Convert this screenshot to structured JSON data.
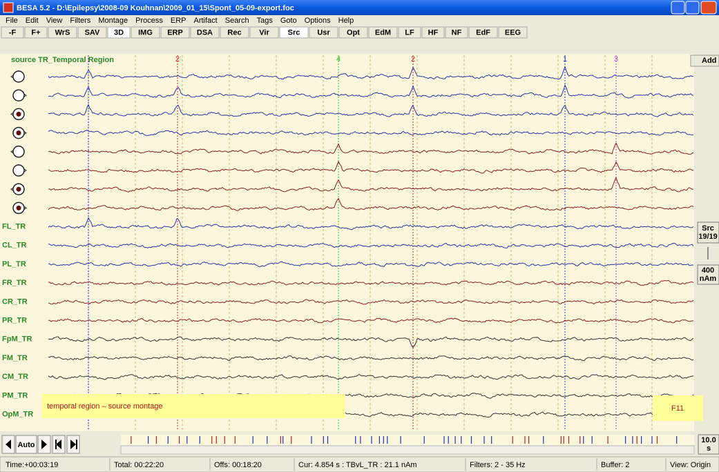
{
  "window": {
    "title": "BESA 5.2 - D:\\Epilepsy\\2008-09 Kouhnan\\2009_01_15\\Spont_05-09-export.foc"
  },
  "menu": [
    "File",
    "Edit",
    "View",
    "Filters",
    "Montage",
    "Process",
    "ERP",
    "Artifact",
    "Search",
    "Tags",
    "Goto",
    "Options",
    "Help"
  ],
  "toolbar": [
    "-F",
    "F+",
    "WrS",
    "SAV",
    "3D",
    "IMG",
    "ERP",
    "DSA",
    "Rec",
    "Vir",
    "Src",
    "Usr",
    "Opt",
    "EdM",
    "LF",
    "HF",
    "NF",
    "EdF",
    "EEG"
  ],
  "montage_label": "source TR_Temporal Region",
  "channels": [
    "FL_TR",
    "CL_TR",
    "PL_TR",
    "FR_TR",
    "CR_TR",
    "PR_TR",
    "FpM_TR",
    "FM_TR",
    "CM_TR",
    "PM_TR",
    "OpM_TR"
  ],
  "markers": [
    "2",
    "4",
    "2",
    "1",
    "3"
  ],
  "overlay": "temporal region – source montage",
  "key": "F11",
  "side": {
    "add": "Add",
    "src": "Src",
    "src_count": "19/19",
    "scale_value": "400",
    "scale_unit": "nAm",
    "page_value": "10.0",
    "page_unit": "s"
  },
  "nav": {
    "auto": "Auto"
  },
  "status": [
    "Time:+00:03:19",
    "Total: 00:22:20",
    "Offs: 00:18:20",
    "Cur: 4.854 s : TBvL_TR : 21.1 nAm",
    "Filters: 2 - 35 Hz",
    "Buffer: 2",
    "View: Origin"
  ]
}
